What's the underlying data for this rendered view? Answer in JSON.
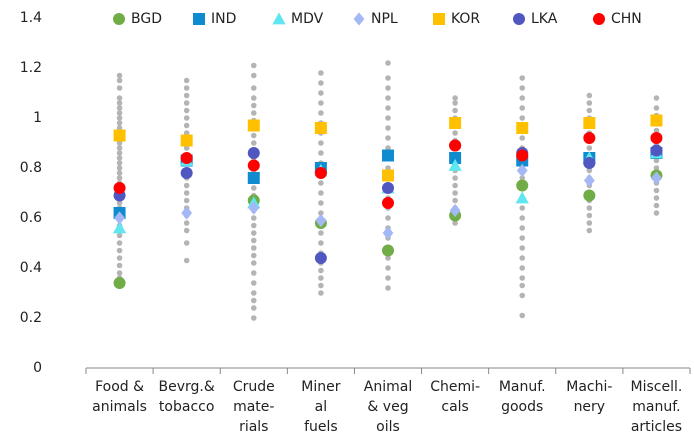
{
  "chart_data": {
    "type": "dot",
    "categories": [
      [
        "Food &",
        "animals"
      ],
      [
        "Bevrg.&",
        "tobacco"
      ],
      [
        "Crude",
        "mate-",
        "rials"
      ],
      [
        "Miner",
        "al",
        "fuels"
      ],
      [
        "Animal",
        "& veg",
        "oils"
      ],
      [
        "Chemi-",
        "cals"
      ],
      [
        "Manuf.",
        "goods"
      ],
      [
        "Machi-",
        "nery"
      ],
      [
        "Miscell.",
        "manuf.",
        "articles"
      ]
    ],
    "ylim": [
      0,
      1.4
    ],
    "yticks": [
      0,
      0.2,
      0.4,
      0.6,
      0.8,
      1,
      1.2,
      1.4
    ],
    "background": {
      "color": "#b4b4b4",
      "values": [
        [
          0.36,
          0.38,
          0.41,
          0.44,
          0.47,
          0.5,
          0.53,
          0.55,
          0.57,
          0.6,
          0.62,
          0.64,
          0.66,
          0.68,
          0.7,
          0.72,
          0.74,
          0.76,
          0.78,
          0.8,
          0.82,
          0.84,
          0.86,
          0.88,
          0.9,
          0.92,
          0.94,
          0.96,
          0.98,
          1.0,
          1.02,
          1.04,
          1.06,
          1.08,
          1.12,
          1.15,
          1.17
        ],
        [
          0.43,
          0.5,
          0.55,
          0.58,
          0.61,
          0.64,
          0.67,
          0.7,
          0.73,
          0.76,
          0.79,
          0.82,
          0.85,
          0.88,
          0.91,
          0.94,
          0.97,
          1.0,
          1.03,
          1.06,
          1.09,
          1.12,
          1.15
        ],
        [
          0.2,
          0.24,
          0.27,
          0.3,
          0.34,
          0.38,
          0.42,
          0.45,
          0.48,
          0.51,
          0.54,
          0.57,
          0.6,
          0.63,
          0.66,
          0.69,
          0.72,
          0.75,
          0.78,
          0.81,
          0.84,
          0.87,
          0.9,
          0.93,
          0.96,
          0.99,
          1.02,
          1.05,
          1.08,
          1.12,
          1.17,
          1.21
        ],
        [
          0.3,
          0.33,
          0.36,
          0.39,
          0.42,
          0.46,
          0.5,
          0.54,
          0.58,
          0.62,
          0.66,
          0.7,
          0.74,
          0.78,
          0.82,
          0.86,
          0.9,
          0.94,
          0.98,
          1.02,
          1.06,
          1.1,
          1.14,
          1.18
        ],
        [
          0.32,
          0.36,
          0.4,
          0.44,
          0.48,
          0.52,
          0.56,
          0.6,
          0.64,
          0.68,
          0.72,
          0.76,
          0.8,
          0.84,
          0.88,
          0.92,
          0.96,
          1.0,
          1.04,
          1.08,
          1.12,
          1.16,
          1.22
        ],
        [
          0.58,
          0.61,
          0.64,
          0.67,
          0.7,
          0.73,
          0.76,
          0.79,
          0.82,
          0.85,
          0.88,
          0.91,
          0.94,
          0.97,
          1.0,
          1.03,
          1.06,
          1.08
        ],
        [
          0.21,
          0.29,
          0.33,
          0.36,
          0.4,
          0.44,
          0.48,
          0.52,
          0.56,
          0.6,
          0.64,
          0.68,
          0.72,
          0.76,
          0.8,
          0.84,
          0.88,
          0.92,
          0.96,
          1.0,
          1.04,
          1.08,
          1.12,
          1.16
        ],
        [
          0.55,
          0.58,
          0.61,
          0.64,
          0.67,
          0.7,
          0.73,
          0.76,
          0.79,
          0.82,
          0.85,
          0.88,
          0.91,
          0.94,
          0.97,
          1.0,
          1.03,
          1.06,
          1.09
        ],
        [
          0.62,
          0.65,
          0.68,
          0.71,
          0.74,
          0.77,
          0.8,
          0.83,
          0.86,
          0.89,
          0.92,
          0.95,
          0.98,
          1.01,
          1.04,
          1.08
        ]
      ]
    },
    "series": [
      {
        "name": "BGD",
        "color": "#70ad47",
        "marker": "circle",
        "values": [
          0.34,
          0.83,
          0.67,
          0.58,
          0.47,
          0.61,
          0.73,
          0.69,
          0.77
        ]
      },
      {
        "name": "IND",
        "color": "#0f8ccf",
        "marker": "square",
        "values": [
          0.62,
          0.83,
          0.76,
          0.8,
          0.85,
          0.84,
          0.83,
          0.84,
          0.86
        ]
      },
      {
        "name": "MDV",
        "color": "#5fe6f0",
        "marker": "triangle",
        "values": [
          0.56,
          0.83,
          0.66,
          0.79,
          0.72,
          0.81,
          0.68,
          0.84,
          0.86
        ]
      },
      {
        "name": "NPL",
        "color": "#a4b8f5",
        "marker": "diamond",
        "values": [
          0.6,
          0.62,
          0.64,
          0.59,
          0.54,
          0.63,
          0.79,
          0.75,
          0.76
        ]
      },
      {
        "name": "KOR",
        "color": "#ffc000",
        "marker": "square",
        "values": [
          0.93,
          0.91,
          0.97,
          0.96,
          0.77,
          0.98,
          0.96,
          0.98,
          0.99
        ]
      },
      {
        "name": "LKA",
        "color": "#5057c0",
        "marker": "circle",
        "values": [
          0.69,
          0.78,
          0.86,
          0.44,
          0.72,
          0.89,
          0.86,
          0.82,
          0.87
        ]
      },
      {
        "name": "CHN",
        "color": "#ff0000",
        "marker": "circle",
        "values": [
          0.72,
          0.84,
          0.81,
          0.78,
          0.66,
          0.89,
          0.85,
          0.92,
          0.92
        ]
      }
    ]
  }
}
